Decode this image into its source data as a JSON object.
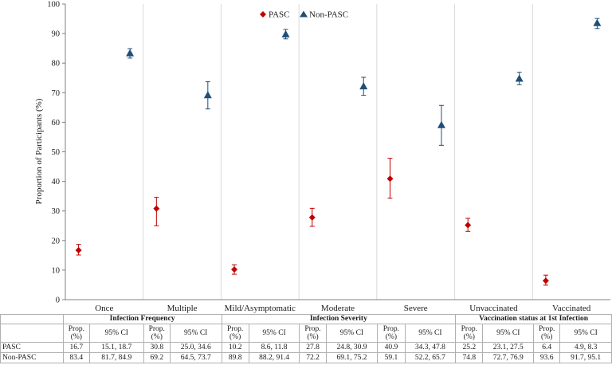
{
  "chart_data": {
    "type": "scatter",
    "ylabel": "Proportion of Participants (%)",
    "ylim": [
      0,
      100
    ],
    "yticks": [
      "0",
      "10",
      "20",
      "30",
      "40",
      "50",
      "60",
      "70",
      "80",
      "90",
      "100"
    ],
    "categories": [
      "Once",
      "Multiple",
      "Mild/Asymptomatic",
      "Moderate",
      "Severe",
      "Unvaccinated",
      "Vaccinated"
    ],
    "series": [
      {
        "name": "PASC",
        "color": "#c00000",
        "marker": "diamond",
        "values": [
          16.7,
          30.8,
          10.2,
          27.8,
          40.9,
          25.2,
          6.4
        ],
        "ci_low": [
          15.1,
          25.0,
          8.6,
          24.8,
          34.3,
          23.1,
          4.9
        ],
        "ci_high": [
          18.7,
          34.6,
          11.8,
          30.9,
          47.8,
          27.5,
          8.3
        ]
      },
      {
        "name": "Non-PASC",
        "color": "#1f4e79",
        "marker": "triangle",
        "values": [
          83.4,
          69.2,
          89.8,
          72.2,
          59.1,
          74.8,
          93.6
        ],
        "ci_low": [
          81.7,
          64.5,
          88.2,
          69.1,
          52.2,
          72.7,
          91.7
        ],
        "ci_high": [
          84.9,
          73.7,
          91.4,
          75.2,
          65.7,
          76.9,
          95.1
        ]
      }
    ],
    "legend": {
      "position": "top",
      "labels": [
        "PASC",
        "Non-PASC"
      ]
    }
  },
  "table": {
    "groups": [
      "Infection Frequency",
      "Infection Severity",
      "Vaccination status at 1st Infection"
    ],
    "prop_header": [
      "Prop.",
      "(%)"
    ],
    "ci_header": "95% CI",
    "rows": [
      {
        "label": "PASC",
        "cells": [
          "16.7",
          "15.1, 18.7",
          "30.8",
          "25.0, 34.6",
          "10.2",
          "8.6, 11.8",
          "27.8",
          "24.8, 30.9",
          "40.9",
          "34.3, 47.8",
          "25.2",
          "23.1, 27.5",
          "6.4",
          "4.9, 8.3"
        ]
      },
      {
        "label": "Non-PASC",
        "cells": [
          "83.4",
          "81.7, 84.9",
          "69.2",
          "64.5, 73.7",
          "89.8",
          "88.2, 91.4",
          "72.2",
          "69.1, 75.2",
          "59.1",
          "52.2, 65.7",
          "74.8",
          "72.7, 76.9",
          "93.6",
          "91.7, 95.1"
        ]
      }
    ]
  }
}
